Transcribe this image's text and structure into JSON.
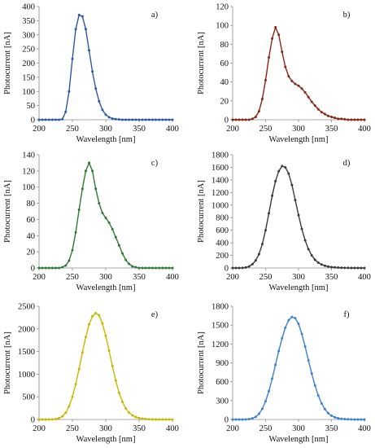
{
  "chart_data": [
    {
      "type": "line",
      "panel_label": "a)",
      "xlabel": "Wavelength [nm]",
      "ylabel": "Photocurrent [nA]",
      "xlim": [
        200,
        400
      ],
      "ylim": [
        0,
        400
      ],
      "xticks": [
        "200",
        "250",
        "300",
        "350",
        "400"
      ],
      "yticks": [
        "0",
        "50",
        "100",
        "150",
        "200",
        "250",
        "300",
        "350",
        "400"
      ],
      "grid": false,
      "color": "#2f57a8",
      "x": [
        200,
        205,
        210,
        215,
        220,
        225,
        230,
        235,
        240,
        245,
        250,
        255,
        260,
        265,
        270,
        275,
        280,
        285,
        290,
        295,
        300,
        305,
        310,
        315,
        320,
        325,
        330,
        335,
        340,
        345,
        350,
        355,
        360,
        365,
        370,
        375,
        380,
        385,
        390,
        395,
        400
      ],
      "y": [
        0,
        0,
        0,
        0,
        0,
        0,
        0,
        2,
        28,
        100,
        215,
        320,
        370,
        365,
        320,
        245,
        170,
        110,
        65,
        35,
        18,
        9,
        4,
        2,
        1,
        0,
        0,
        0,
        0,
        0,
        0,
        0,
        0,
        0,
        0,
        0,
        0,
        0,
        0,
        0,
        0
      ]
    },
    {
      "type": "line",
      "panel_label": "b)",
      "xlabel": "Wavelength [nm]",
      "ylabel": "Photocurrent [nA]",
      "xlim": [
        200,
        400
      ],
      "ylim": [
        0,
        120
      ],
      "xticks": [
        "200",
        "250",
        "300",
        "350",
        "400"
      ],
      "yticks": [
        "0",
        "20",
        "40",
        "60",
        "80",
        "100",
        "120"
      ],
      "grid": false,
      "color": "#8b2413",
      "x": [
        200,
        205,
        210,
        215,
        220,
        225,
        230,
        235,
        240,
        245,
        250,
        255,
        260,
        265,
        270,
        275,
        280,
        285,
        290,
        295,
        300,
        305,
        310,
        315,
        320,
        325,
        330,
        335,
        340,
        345,
        350,
        355,
        360,
        365,
        370,
        375,
        380,
        385,
        390,
        395,
        400
      ],
      "y": [
        0,
        0,
        0,
        0,
        0,
        0,
        1,
        3,
        9,
        22,
        42,
        66,
        86,
        98,
        90,
        72,
        56,
        46,
        41,
        38,
        36,
        33,
        29,
        24,
        19,
        15,
        11,
        8,
        6,
        4,
        3,
        2,
        1,
        1,
        0.5,
        0,
        0,
        0,
        0,
        0,
        0
      ]
    },
    {
      "type": "line",
      "panel_label": "c)",
      "xlabel": "Wavelength [nm]",
      "ylabel": "Photocurrent [nA]",
      "xlim": [
        200,
        400
      ],
      "ylim": [
        0,
        140
      ],
      "xticks": [
        "200",
        "250",
        "300",
        "350",
        "400"
      ],
      "yticks": [
        "0",
        "20",
        "40",
        "60",
        "80",
        "100",
        "120",
        "140"
      ],
      "grid": false,
      "color": "#2e7a32",
      "x": [
        200,
        205,
        210,
        215,
        220,
        225,
        230,
        235,
        240,
        245,
        250,
        255,
        260,
        265,
        270,
        275,
        280,
        285,
        290,
        295,
        300,
        305,
        310,
        315,
        320,
        325,
        330,
        335,
        340,
        345,
        350,
        355,
        360,
        365,
        370,
        375,
        380,
        385,
        390,
        395,
        400
      ],
      "y": [
        0,
        0,
        0,
        0,
        0,
        0,
        0,
        1,
        3,
        9,
        22,
        44,
        72,
        98,
        120,
        130,
        120,
        98,
        80,
        68,
        62,
        56,
        48,
        38,
        28,
        18,
        10,
        5,
        2,
        1,
        0,
        0,
        0,
        0,
        0,
        0,
        0,
        0,
        0,
        0,
        0
      ]
    },
    {
      "type": "line",
      "panel_label": "d)",
      "xlabel": "Wavelength [nm]",
      "ylabel": "Photocurrent [nA]",
      "xlim": [
        200,
        400
      ],
      "ylim": [
        0,
        1800
      ],
      "xticks": [
        "200",
        "250",
        "300",
        "350",
        "400"
      ],
      "yticks": [
        "0",
        "200",
        "400",
        "600",
        "800",
        "1000",
        "1200",
        "1400",
        "1600",
        "1800"
      ],
      "grid": false,
      "color": "#3a3a3a",
      "x": [
        200,
        205,
        210,
        215,
        220,
        225,
        230,
        235,
        240,
        245,
        250,
        255,
        260,
        265,
        270,
        275,
        280,
        285,
        290,
        295,
        300,
        305,
        310,
        315,
        320,
        325,
        330,
        335,
        340,
        345,
        350,
        355,
        360,
        365,
        370,
        375,
        380,
        385,
        390,
        395,
        400
      ],
      "y": [
        0,
        0,
        0,
        2,
        8,
        25,
        60,
        120,
        220,
        380,
        600,
        870,
        1150,
        1380,
        1540,
        1620,
        1600,
        1500,
        1320,
        1080,
        840,
        620,
        440,
        300,
        200,
        130,
        85,
        55,
        35,
        22,
        14,
        9,
        6,
        4,
        2,
        1,
        0,
        0,
        0,
        0,
        0
      ]
    },
    {
      "type": "line",
      "panel_label": "e)",
      "xlabel": "Wavelength [nm]",
      "ylabel": "Photocurrent [nA]",
      "xlim": [
        200,
        400
      ],
      "ylim": [
        0,
        2500
      ],
      "xticks": [
        "200",
        "250",
        "300",
        "350",
        "400"
      ],
      "yticks": [
        "0",
        "500",
        "1000",
        "1500",
        "2000",
        "2500"
      ],
      "grid": false,
      "color": "#c9b800",
      "x": [
        200,
        205,
        210,
        215,
        220,
        225,
        230,
        235,
        240,
        245,
        250,
        255,
        260,
        265,
        270,
        275,
        280,
        285,
        290,
        295,
        300,
        305,
        310,
        315,
        320,
        325,
        330,
        335,
        340,
        345,
        350,
        355,
        360,
        365,
        370,
        375,
        380,
        385,
        390,
        395,
        400
      ],
      "y": [
        0,
        0,
        0,
        0,
        3,
        10,
        30,
        70,
        150,
        290,
        500,
        780,
        1120,
        1480,
        1820,
        2100,
        2280,
        2350,
        2300,
        2120,
        1850,
        1520,
        1180,
        860,
        590,
        390,
        245,
        150,
        90,
        55,
        32,
        18,
        10,
        5,
        2,
        1,
        0,
        0,
        0,
        0,
        0
      ]
    },
    {
      "type": "line",
      "panel_label": "f)",
      "xlabel": "Wavelength [nm]",
      "ylabel": "Photocurrent [nA]",
      "xlim": [
        200,
        400
      ],
      "ylim": [
        0,
        1800
      ],
      "xticks": [
        "200",
        "250",
        "300",
        "350",
        "400"
      ],
      "yticks": [
        "0",
        "300",
        "600",
        "900",
        "1200",
        "1500",
        "1800"
      ],
      "grid": false,
      "color": "#3d7fd1",
      "x": [
        200,
        205,
        210,
        215,
        220,
        225,
        230,
        235,
        240,
        245,
        250,
        255,
        260,
        265,
        270,
        275,
        280,
        285,
        290,
        295,
        300,
        305,
        310,
        315,
        320,
        325,
        330,
        335,
        340,
        345,
        350,
        355,
        360,
        365,
        370,
        375,
        380,
        385,
        390,
        395,
        400
      ],
      "y": [
        0,
        0,
        0,
        0,
        2,
        6,
        18,
        42,
        90,
        170,
        290,
        450,
        650,
        870,
        1090,
        1290,
        1460,
        1580,
        1630,
        1610,
        1520,
        1360,
        1160,
        940,
        730,
        540,
        380,
        255,
        165,
        100,
        60,
        35,
        20,
        11,
        6,
        3,
        1,
        0,
        0,
        0,
        0
      ]
    }
  ]
}
